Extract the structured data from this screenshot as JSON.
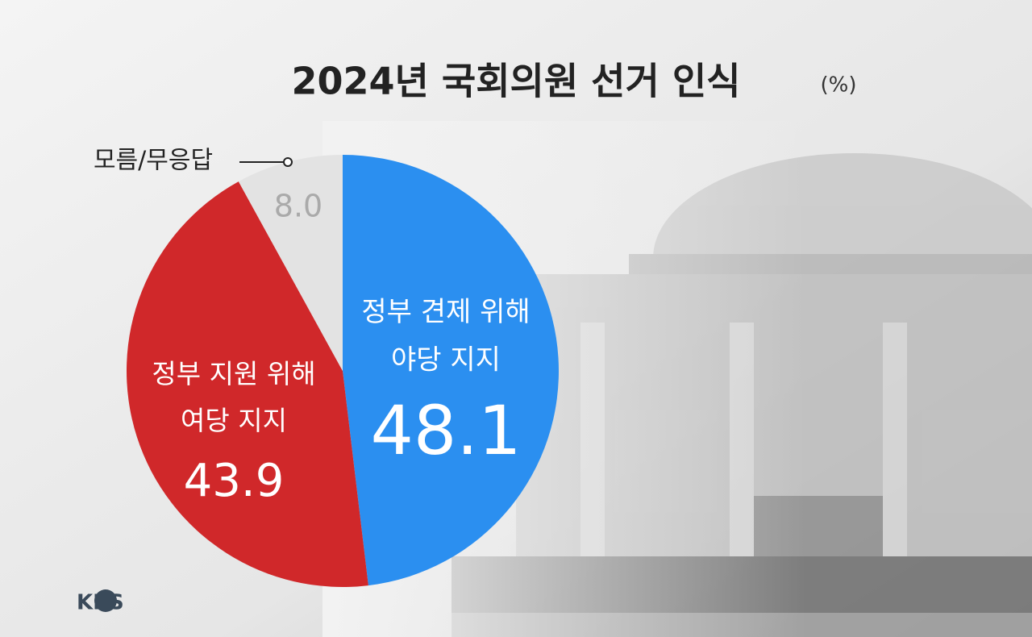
{
  "chart_data": {
    "type": "pie",
    "title": "2024년 국회의원 선거 인식",
    "unit_label": "(%)",
    "categories": [
      "정부 견제 위해\n야당 지지",
      "정부 지원 위해\n여당 지지",
      "모름/무응답"
    ],
    "values": [
      48.1,
      43.9,
      8.0
    ],
    "value_labels": [
      "48.1",
      "43.9",
      "8.0"
    ],
    "colors": [
      "#2b8ff0",
      "#d0282a",
      "#e3e3e3"
    ],
    "logo": "KBS"
  }
}
